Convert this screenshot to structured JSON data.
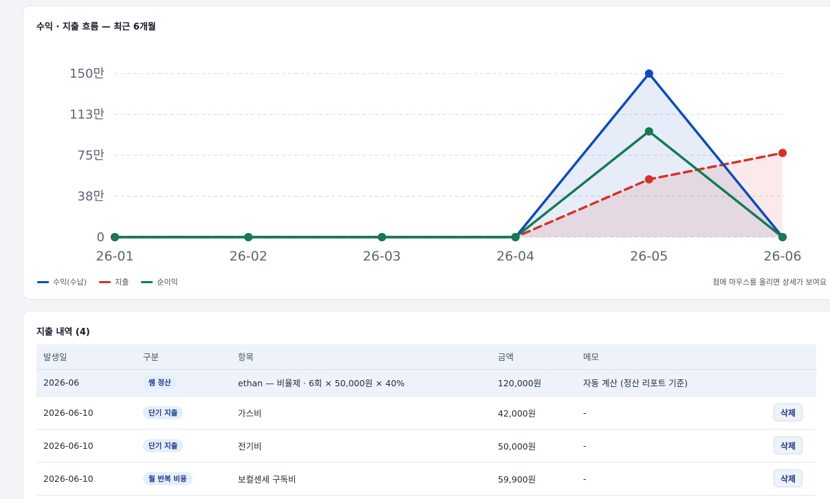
{
  "chart_card": {
    "title": "수익 · 지출 흐름 — 최근 6개월",
    "hint": "점에 마우스를 올리면 상세가 보여요"
  },
  "chart_data": {
    "type": "line",
    "title": "수익 · 지출 흐름 — 최근 6개월",
    "categories": [
      "26-01",
      "26-02",
      "26-03",
      "26-04",
      "26-05",
      "26-06"
    ],
    "y_ticks": [
      0,
      375000,
      750000,
      1125000,
      1500000
    ],
    "y_tick_labels": [
      "0",
      "38만",
      "75만",
      "113만",
      "150만"
    ],
    "ylim": [
      0,
      1500000
    ],
    "grid": true,
    "legend_position": "bottom-left",
    "series": [
      {
        "name": "수익(수납)",
        "color": "#0a4bc1",
        "dashed": false,
        "area": true,
        "values": [
          0,
          0,
          0,
          0,
          1500000,
          0
        ]
      },
      {
        "name": "지출",
        "color": "#d63225",
        "dashed": true,
        "area": true,
        "values": [
          0,
          0,
          0,
          0,
          530000,
          771900
        ]
      },
      {
        "name": "순이익",
        "color": "#157a4f",
        "dashed": false,
        "area": false,
        "values": [
          0,
          0,
          0,
          0,
          970000,
          0
        ]
      }
    ]
  },
  "table_card": {
    "title": "지출 내역 (4)",
    "columns": [
      "발생일",
      "구분",
      "항목",
      "금액",
      "메모"
    ],
    "rows": [
      {
        "date": "2026-06",
        "category": "쌤 정산",
        "item": "ethan — 비율제 · 6회 × 50,000원 × 40%",
        "amount": "120,000원",
        "memo": "자동 계산 (정산 리포트 기준)",
        "action": ""
      },
      {
        "date": "2026-06-10",
        "category": "단기 지출",
        "item": "가스비",
        "amount": "42,000원",
        "memo": "-",
        "action": "삭제"
      },
      {
        "date": "2026-06-10",
        "category": "단기 지출",
        "item": "전기비",
        "amount": "50,000원",
        "memo": "-",
        "action": "삭제"
      },
      {
        "date": "2026-06-10",
        "category": "월 반복 비용",
        "item": "보컬센세 구독비",
        "amount": "59,900원",
        "memo": "-",
        "action": "삭제"
      }
    ]
  }
}
